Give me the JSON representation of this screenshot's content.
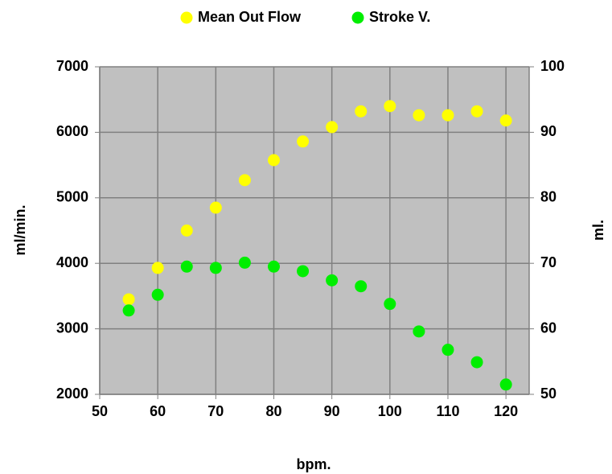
{
  "chart_data": {
    "type": "scatter",
    "x_label": "bpm.",
    "y_label": "ml/min.",
    "y2_label": "ml.",
    "x": [
      55,
      60,
      65,
      70,
      75,
      80,
      85,
      90,
      95,
      100,
      105,
      110,
      115,
      120
    ],
    "series": [
      {
        "name": "Mean Out Flow",
        "color": "#ffff00",
        "values": [
          3450,
          3930,
          4500,
          4850,
          5270,
          5575,
          5860,
          6080,
          6320,
          6400,
          6260,
          6260,
          6320,
          6180
        ]
      },
      {
        "name": "Stroke V.",
        "color": "#00ee00",
        "axis": "y2",
        "values": [
          62.8,
          65.2,
          69.5,
          69.3,
          70.1,
          69.5,
          68.8,
          67.4,
          66.5,
          63.8,
          59.6,
          56.8,
          54.9,
          51.5
        ]
      }
    ],
    "xlim": [
      50,
      124
    ],
    "xticks": [
      50,
      60,
      70,
      80,
      90,
      100,
      110,
      120
    ],
    "ylim": [
      2000,
      7000
    ],
    "yticks": [
      2000,
      3000,
      4000,
      5000,
      6000,
      7000
    ],
    "y2lim": [
      50,
      100
    ],
    "y2ticks": [
      50,
      60,
      70,
      80,
      90,
      100
    ],
    "grid": true,
    "legend": "top"
  }
}
